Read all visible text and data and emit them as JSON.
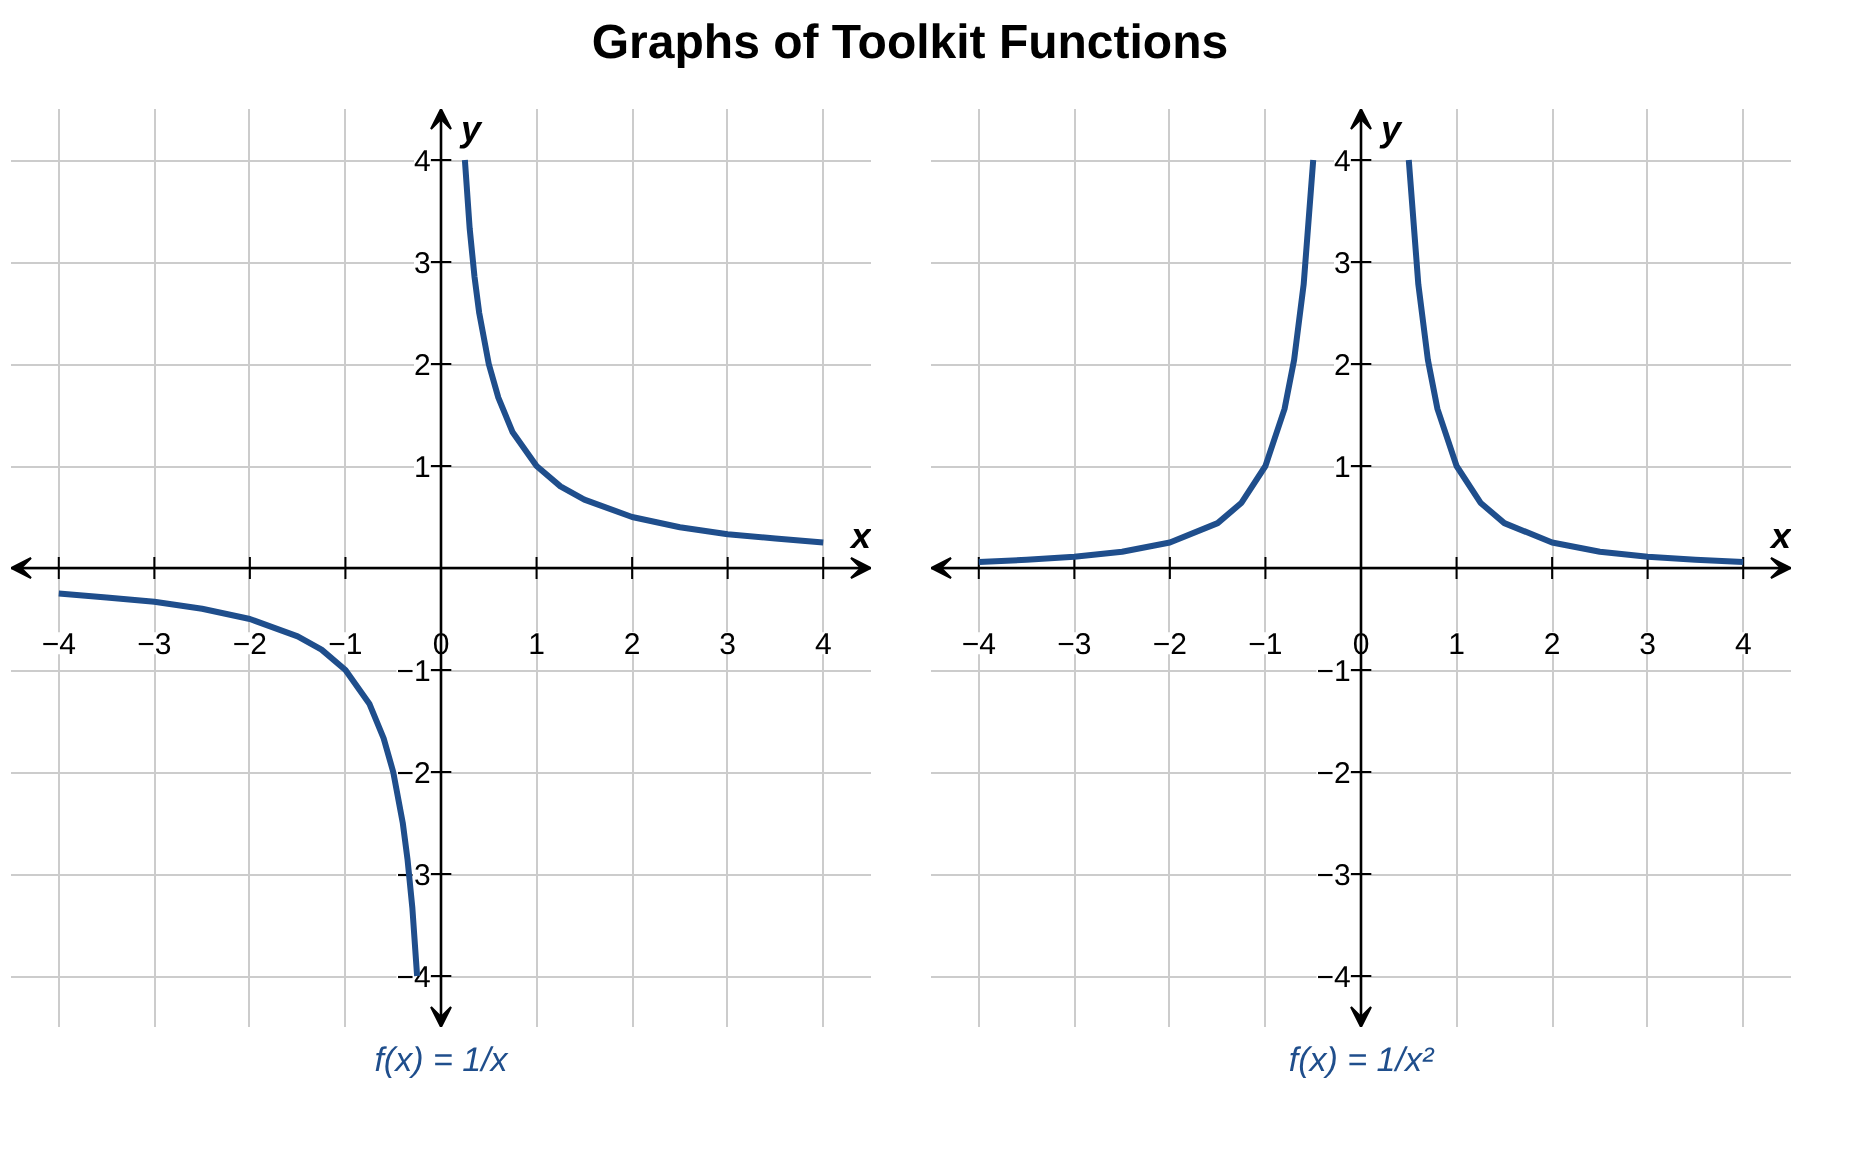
{
  "chart_data": [
    {
      "type": "line",
      "title": "Graphs of Toolkit Functions",
      "xlabel": "x",
      "ylabel": "y",
      "xlim": [
        -4.5,
        4.5
      ],
      "ylim": [
        -4.5,
        4.5
      ],
      "xticks": [
        {
          "value": -4,
          "label": "−4"
        },
        {
          "value": -3,
          "label": "−3"
        },
        {
          "value": -2,
          "label": "−2"
        },
        {
          "value": -1,
          "label": "−1"
        },
        0,
        1,
        2,
        3,
        4
      ],
      "yticks": [
        {
          "value": -4,
          "label": "−4"
        },
        {
          "value": -3,
          "label": "−3"
        },
        {
          "value": -2,
          "label": "−2"
        },
        {
          "value": -1,
          "label": "−1"
        },
        {
          "value": 0,
          "label": null
        },
        1,
        2,
        3,
        4
      ],
      "grid": true,
      "line_style": "solid",
      "annotations": [
        "f(x) = 1/x"
      ],
      "series": [
        {
          "color": "#1f4e8c",
          "x": [
            0.25,
            0.3,
            0.35,
            0.4,
            0.5,
            0.6,
            0.75,
            1,
            1.25,
            1.5,
            2,
            2.5,
            3,
            3.5,
            4
          ],
          "values": [
            4,
            3.33,
            2.86,
            2.5,
            2,
            1.67,
            1.33,
            1,
            0.8,
            0.67,
            0.5,
            0.4,
            0.33,
            0.29,
            0.25
          ]
        },
        {
          "color": "#1f4e8c",
          "x": [
            -4,
            -3.5,
            -3,
            -2.5,
            -2,
            -1.5,
            -1.25,
            -1,
            -0.75,
            -0.6,
            -0.5,
            -0.4,
            -0.35,
            -0.3,
            -0.25
          ],
          "values": [
            -0.25,
            -0.29,
            -0.33,
            -0.4,
            -0.5,
            -0.67,
            -0.8,
            -1,
            -1.33,
            -1.67,
            -2,
            -2.5,
            -2.86,
            -3.33,
            -4
          ]
        }
      ]
    },
    {
      "type": "line",
      "xlabel": "x",
      "ylabel": "y",
      "xlim": [
        -4.5,
        4.5
      ],
      "ylim": [
        -4.5,
        4.5
      ],
      "xticks": [
        {
          "value": -4,
          "label": "−4"
        },
        {
          "value": -3,
          "label": "−3"
        },
        {
          "value": -2,
          "label": "−2"
        },
        {
          "value": -1,
          "label": "−1"
        },
        0,
        1,
        2,
        3,
        4
      ],
      "yticks": [
        {
          "value": -4,
          "label": "−4"
        },
        {
          "value": -3,
          "label": "−3"
        },
        {
          "value": -2,
          "label": "−2"
        },
        {
          "value": -1,
          "label": "−1"
        },
        {
          "value": 0,
          "label": null
        },
        1,
        2,
        3,
        4
      ],
      "grid": true,
      "line_style": "solid",
      "annotations": [
        "f(x) = 1/x²"
      ],
      "series": [
        {
          "color": "#1f4e8c",
          "x": [
            0.5,
            0.6,
            0.7,
            0.8,
            1,
            1.25,
            1.5,
            2,
            2.5,
            3,
            3.5,
            4
          ],
          "values": [
            4,
            2.78,
            2.04,
            1.56,
            1,
            0.64,
            0.44,
            0.25,
            0.16,
            0.11,
            0.08,
            0.06
          ]
        },
        {
          "color": "#1f4e8c",
          "x": [
            -4,
            -3.5,
            -3,
            -2.5,
            -2,
            -1.5,
            -1.25,
            -1,
            -0.8,
            -0.7,
            -0.6,
            -0.5
          ],
          "values": [
            0.06,
            0.08,
            0.11,
            0.16,
            0.25,
            0.44,
            0.64,
            1,
            1.56,
            2.04,
            2.78,
            4
          ]
        }
      ]
    }
  ]
}
